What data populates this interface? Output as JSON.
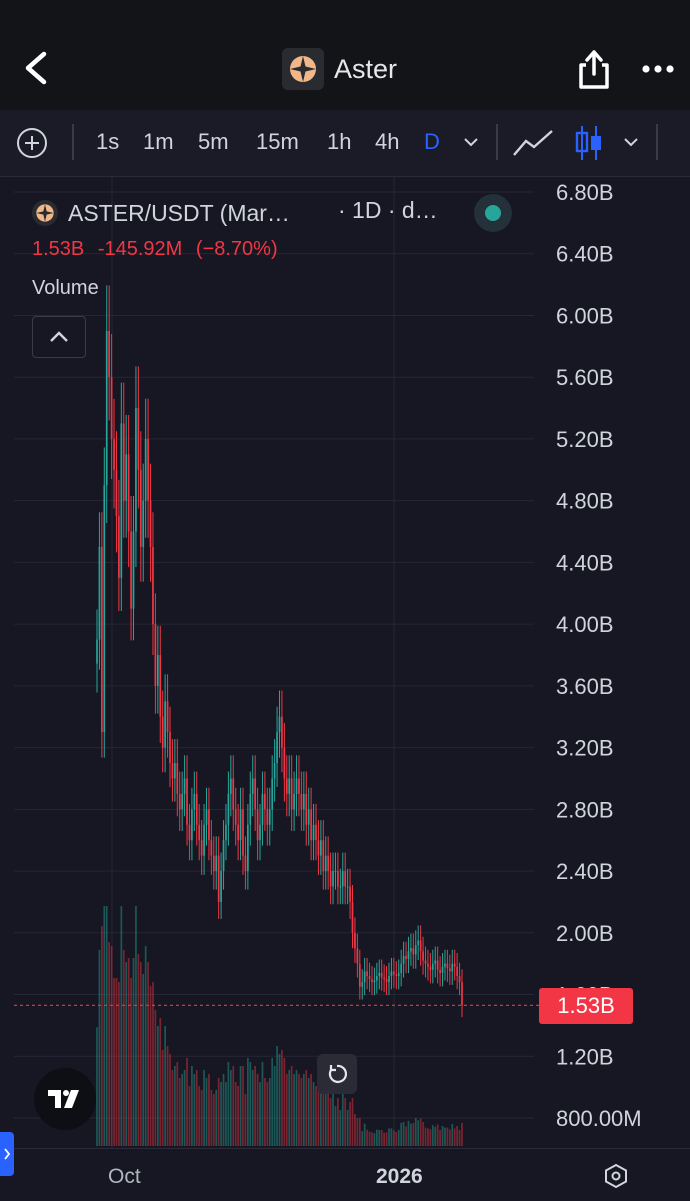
{
  "header": {
    "title": "Aster",
    "back_icon": "chevron-left-icon",
    "share_icon": "share-icon",
    "more_icon": "more-horizontal-icon"
  },
  "toolbar": {
    "add_icon": "plus-circle-icon",
    "intervals": [
      {
        "label": "1s",
        "active": false
      },
      {
        "label": "1m",
        "active": false
      },
      {
        "label": "5m",
        "active": false
      },
      {
        "label": "15m",
        "active": false
      },
      {
        "label": "1h",
        "active": false
      },
      {
        "label": "4h",
        "active": false
      },
      {
        "label": "D",
        "active": true
      }
    ],
    "active_color": "#2962ff"
  },
  "legend": {
    "symbol": "ASTER/USDT (Mar…",
    "interval": "· 1D · d…",
    "last_value": "1.53B",
    "change": "-145.92M",
    "change_pct": "(−8.70%)",
    "indicator": "Volume"
  },
  "price_tag": "1.53B",
  "chart_data": {
    "type": "candlestick",
    "y_axis": {
      "ticks": [
        "6.80B",
        "6.40B",
        "6.00B",
        "5.60B",
        "5.20B",
        "4.80B",
        "4.40B",
        "4.00B",
        "3.60B",
        "3.20B",
        "2.80B",
        "2.40B",
        "2.00B",
        "1.60B",
        "1.20B",
        "800.00M"
      ],
      "range": [
        0.8,
        6.8
      ],
      "unit": "B"
    },
    "x_axis": {
      "labels": [
        {
          "text": "Oct",
          "major": false
        },
        {
          "text": "2026",
          "major": true
        }
      ]
    },
    "last_price": 1.53,
    "up_color": "#26a69a",
    "down_color": "#f23645",
    "series": [
      {
        "name": "Volume",
        "values": [
          3.9,
          4.5,
          3.3,
          4.9,
          5.9,
          5.6,
          5.2,
          5.0,
          4.7,
          4.3,
          5.3,
          4.8,
          5.1,
          4.6,
          4.1,
          4.6,
          5.4,
          5.0,
          4.5,
          4.8,
          5.2,
          4.8,
          4.5,
          4.0,
          3.6,
          3.8,
          3.4,
          3.2,
          3.5,
          3.3,
          3.1,
          3.0,
          3.1,
          2.9,
          2.8,
          2.9,
          3.0,
          2.7,
          2.6,
          2.8,
          2.9,
          2.7,
          2.6,
          2.5,
          2.7,
          2.8,
          2.6,
          2.5,
          2.4,
          2.5,
          2.2,
          2.4,
          2.6,
          2.7,
          2.9,
          3.0,
          2.8,
          2.7,
          2.6,
          2.8,
          2.5,
          2.4,
          2.7,
          2.9,
          3.0,
          2.8,
          2.6,
          2.7,
          2.9,
          2.8,
          2.7,
          2.8,
          3.0,
          3.1,
          3.3,
          3.4,
          3.2,
          3.0,
          2.9,
          3.0,
          2.8,
          2.9,
          3.0,
          2.9,
          2.8,
          2.9,
          2.7,
          2.8,
          2.6,
          2.7,
          2.6,
          2.5,
          2.6,
          2.4,
          2.5,
          2.4,
          2.3,
          2.4,
          2.4,
          2.3,
          2.3,
          2.4,
          2.3,
          2.3,
          2.2,
          2.0,
          1.9,
          1.8,
          1.65,
          1.68,
          1.75,
          1.72,
          1.7,
          1.68,
          1.69,
          1.72,
          1.74,
          1.71,
          1.7,
          1.68,
          1.72,
          1.75,
          1.73,
          1.72,
          1.74,
          1.8,
          1.85,
          1.83,
          1.88,
          1.9,
          1.86,
          1.92,
          1.95,
          1.88,
          1.82,
          1.8,
          1.78,
          1.76,
          1.8,
          1.82,
          1.76,
          1.74,
          1.78,
          1.8,
          1.77,
          1.75,
          1.8,
          1.78,
          1.72,
          1.68,
          1.53
        ]
      }
    ]
  },
  "bottom": {
    "settings_icon": "hexagon-settings-icon",
    "side_tab_icon": "chevron-right-icon",
    "tv_logo": "tradingview-logo-icon",
    "reset_icon": "reset-icon"
  }
}
